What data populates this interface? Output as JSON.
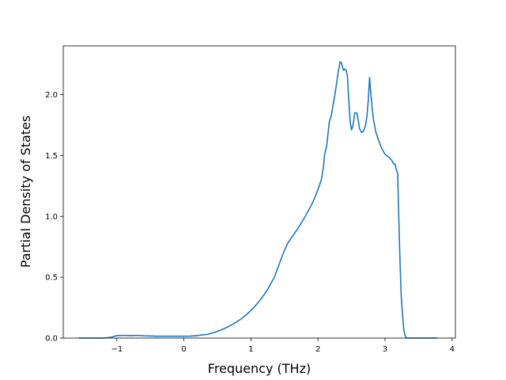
{
  "chart_data": {
    "type": "line",
    "title": "",
    "xlabel": "Frequency (THz)",
    "ylabel": "Partial Density of States",
    "xlim": [
      -1.8,
      4.05
    ],
    "ylim": [
      0.0,
      2.4
    ],
    "grid": false,
    "legend": "none",
    "x_ticks": [
      -1,
      0,
      1,
      2,
      3,
      4
    ],
    "x_tick_labels": [
      "−1",
      "0",
      "1",
      "2",
      "3",
      "4"
    ],
    "y_ticks": [
      0.0,
      0.5,
      1.0,
      1.5,
      2.0
    ],
    "y_tick_labels": [
      "0.0",
      "0.5",
      "1.0",
      "1.5",
      "2.0"
    ],
    "series": [
      {
        "color": "#1f77b4",
        "x": [
          -1.57,
          -1.2,
          -1.1,
          -1.0,
          -0.9,
          -0.8,
          -0.7,
          -0.6,
          -0.4,
          -0.2,
          0.0,
          0.1,
          0.2,
          0.25,
          0.35,
          0.45,
          0.55,
          0.65,
          0.75,
          0.85,
          0.95,
          1.05,
          1.15,
          1.25,
          1.35,
          1.4,
          1.45,
          1.5,
          1.55,
          1.6,
          1.65,
          1.7,
          1.8,
          1.9,
          1.95,
          2.0,
          2.05,
          2.08,
          2.1,
          2.13,
          2.17,
          2.2,
          2.22,
          2.25,
          2.28,
          2.3,
          2.33,
          2.35,
          2.38,
          2.4,
          2.42,
          2.44,
          2.46,
          2.48,
          2.5,
          2.52,
          2.55,
          2.58,
          2.6,
          2.62,
          2.65,
          2.68,
          2.71,
          2.73,
          2.75,
          2.77,
          2.79,
          2.81,
          2.83,
          2.86,
          2.9,
          2.95,
          3.0,
          3.05,
          3.1,
          3.13,
          3.15,
          3.17,
          3.19,
          3.2,
          3.22,
          3.24,
          3.26,
          3.28,
          3.3,
          3.32,
          3.34,
          3.4,
          3.6,
          3.78
        ],
        "y": [
          0.0,
          0.0,
          0.005,
          0.02,
          0.022,
          0.02,
          0.022,
          0.018,
          0.015,
          0.015,
          0.015,
          0.016,
          0.02,
          0.025,
          0.03,
          0.045,
          0.065,
          0.09,
          0.12,
          0.155,
          0.2,
          0.255,
          0.32,
          0.4,
          0.5,
          0.575,
          0.65,
          0.72,
          0.78,
          0.82,
          0.86,
          0.9,
          0.99,
          1.09,
          1.15,
          1.22,
          1.3,
          1.4,
          1.51,
          1.58,
          1.78,
          1.83,
          1.9,
          1.99,
          2.1,
          2.18,
          2.27,
          2.26,
          2.2,
          2.21,
          2.2,
          2.15,
          1.95,
          1.78,
          1.71,
          1.74,
          1.85,
          1.85,
          1.79,
          1.72,
          1.69,
          1.7,
          1.75,
          1.82,
          1.95,
          2.14,
          2.0,
          1.88,
          1.79,
          1.7,
          1.63,
          1.56,
          1.51,
          1.49,
          1.46,
          1.43,
          1.43,
          1.38,
          1.35,
          1.1,
          0.7,
          0.36,
          0.2,
          0.07,
          0.02,
          0.0,
          0.0,
          0.0,
          0.0,
          0.0
        ]
      }
    ]
  }
}
